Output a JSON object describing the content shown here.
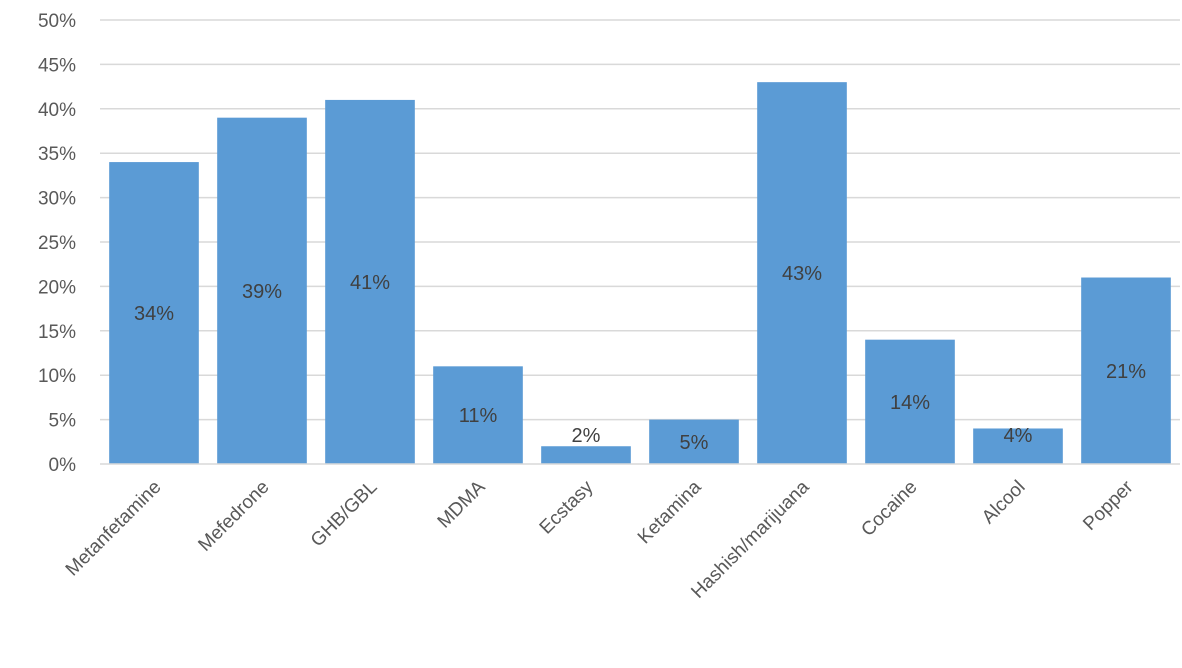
{
  "chart_data": {
    "type": "bar",
    "title": "",
    "xlabel": "",
    "ylabel": "",
    "categories": [
      "Metanfetamine",
      "Mefedrone",
      "GHB/GBL",
      "MDMA",
      "Ecstasy",
      "Ketamina",
      "Hashish/marijuana",
      "Cocaine",
      "Alcool",
      "Popper"
    ],
    "values": [
      34,
      39,
      41,
      11,
      2,
      5,
      43,
      14,
      4,
      21
    ],
    "data_labels": [
      "34%",
      "39%",
      "41%",
      "11%",
      "2%",
      "5%",
      "43%",
      "14%",
      "4%",
      "21%"
    ],
    "ylim": [
      0,
      50
    ],
    "y_ticks": [
      0,
      5,
      10,
      15,
      20,
      25,
      30,
      35,
      40,
      45,
      50
    ],
    "y_tick_labels": [
      "0%",
      "5%",
      "10%",
      "15%",
      "20%",
      "25%",
      "30%",
      "35%",
      "40%",
      "45%",
      "50%"
    ],
    "grid": true,
    "legend": "none",
    "bar_color": "#5b9bd5"
  }
}
